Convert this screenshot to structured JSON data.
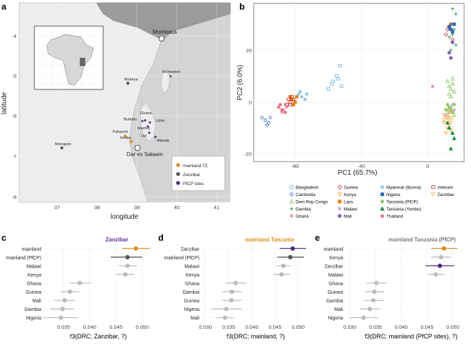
{
  "panel_a": {
    "letter": "a",
    "xlabel": "longitude",
    "ylabel": "latitude",
    "x_ticks": [
      "37",
      "38",
      "39",
      "40",
      "41"
    ],
    "y_ticks": [
      "-4",
      "-5",
      "-6",
      "-7",
      "-8"
    ],
    "places": {
      "mombasa": "Mombasa",
      "dar": "Dar es Salaam",
      "muheza": "Muheza",
      "morogoro": "Morogoro",
      "micheweni": "Micheweni",
      "ghana": "Ghana",
      "bububu": "Bububu",
      "uzini": "Uzini",
      "machui": "Machui",
      "uzi": "Uzi",
      "mtende": "Mtende",
      "fukayosi": "Fukayosi",
      "yombo": "Yombo"
    },
    "legend": [
      {
        "label": "mainland TZ",
        "color": "#e08a1e"
      },
      {
        "label": "Zanzibar",
        "color": "#555555"
      },
      {
        "label": "PfCP sites",
        "color": "#4b2a80"
      }
    ]
  },
  "panel_b": {
    "letter": "b",
    "chart_data": {
      "type": "scatter",
      "xlabel": "PC1 (65.7%)",
      "ylabel": "PC2 (6.0%)",
      "x_ticks": [
        "-80",
        "-40",
        "0"
      ],
      "y_ticks": [
        "20",
        "0",
        "-20"
      ],
      "xlim": [
        -105,
        22
      ],
      "ylim": [
        -23,
        38
      ],
      "groups": [
        {
          "name": "Bangladesh",
          "color": "#6aaee0",
          "marker": "square-open",
          "points": [
            [
              -60,
              5
            ],
            [
              -57,
              8
            ],
            [
              -55,
              10
            ],
            [
              -53,
              14
            ],
            [
              -52,
              6
            ],
            [
              -58,
              7
            ],
            [
              -54,
              9
            ]
          ]
        },
        {
          "name": "Cambodia",
          "color": "#1f5fb0",
          "marker": "circle-open",
          "points": [
            [
              -100,
              -6
            ],
            [
              -98,
              -7
            ],
            [
              -97,
              -9
            ],
            [
              -95,
              -6
            ],
            [
              -96,
              -8
            ]
          ]
        },
        {
          "name": "Dem Rep Congo",
          "color": "#7cc242",
          "marker": "triangle-open",
          "points": [
            [
              12,
              8
            ],
            [
              13,
              6
            ],
            [
              14,
              5
            ],
            [
              15,
              7
            ],
            [
              16,
              4
            ],
            [
              13,
              3
            ],
            [
              15,
              9
            ],
            [
              14,
              2
            ],
            [
              12,
              -4
            ],
            [
              13,
              -6
            ],
            [
              16,
              -5
            ]
          ]
        },
        {
          "name": "Gambia",
          "color": "#2aa04a",
          "marker": "plus",
          "points": [
            [
              15,
              36
            ],
            [
              17,
              34
            ],
            [
              14,
              30
            ],
            [
              16,
              28
            ],
            [
              13,
              25
            ],
            [
              15,
              26
            ],
            [
              17,
              22
            ],
            [
              14,
              20
            ]
          ]
        },
        {
          "name": "Ghana",
          "color": "#e05a70",
          "marker": "cross",
          "points": [
            [
              3,
              6
            ],
            [
              -85,
              -2
            ],
            [
              -88,
              -4
            ],
            [
              -86,
              -1
            ],
            [
              -87,
              -3
            ]
          ]
        },
        {
          "name": "Guinea",
          "color": "#c0202a",
          "marker": "diamond-open",
          "points": [
            [
              12,
              28
            ],
            [
              14,
              30
            ],
            [
              11,
              26
            ],
            [
              15,
              24
            ],
            [
              13,
              29
            ]
          ]
        },
        {
          "name": "Kenya",
          "color": "#f0a030",
          "marker": "triangle-down-open",
          "points": [
            [
              10,
              -8
            ],
            [
              12,
              -10
            ],
            [
              11,
              -12
            ],
            [
              13,
              -9
            ],
            [
              14,
              -11
            ],
            [
              10,
              -5
            ],
            [
              12,
              -6
            ],
            [
              15,
              -4
            ]
          ]
        },
        {
          "name": "Laos",
          "color": "#f07c00",
          "marker": "square",
          "points": [
            [
              -82,
              1
            ],
            [
              -80,
              0
            ],
            [
              -81,
              -1
            ],
            [
              -79,
              2
            ],
            [
              -83,
              2
            ]
          ]
        },
        {
          "name": "Malawi",
          "color": "#d9b0e0",
          "marker": "circle",
          "points": [
            [
              12,
              -3
            ],
            [
              14,
              -2
            ],
            [
              13,
              -4
            ],
            [
              15,
              -1
            ],
            [
              11,
              -5
            ],
            [
              16,
              -3
            ]
          ]
        },
        {
          "name": "Mali",
          "color": "#7b5ab8",
          "marker": "diamond",
          "points": [
            [
              15,
              23
            ],
            [
              13,
              19
            ],
            [
              14,
              17
            ]
          ]
        },
        {
          "name": "Myanmar (Burma)",
          "color": "#90c8e8",
          "marker": "circle",
          "points": [
            [
              -78,
              3
            ],
            [
              -76,
              2
            ],
            [
              -74,
              1
            ],
            [
              -77,
              4
            ],
            [
              -73,
              3
            ]
          ]
        },
        {
          "name": "Nigeria",
          "color": "#2a6ab8",
          "marker": "square",
          "points": [
            [
              14,
              28
            ],
            [
              16,
              30
            ],
            [
              15,
              27
            ],
            [
              13,
              29
            ]
          ]
        },
        {
          "name": "Tanzania (PfCP)",
          "color": "#8ad050",
          "marker": "circle",
          "points": [
            [
              12,
              -1
            ],
            [
              14,
              -3
            ],
            [
              13,
              -2
            ],
            [
              15,
              -4
            ],
            [
              11,
              -3
            ],
            [
              16,
              -1
            ]
          ]
        },
        {
          "name": "Tanzania (Yombo)",
          "color": "#1a8a3a",
          "marker": "triangle",
          "points": [
            [
              13,
              -10
            ],
            [
              15,
              -12
            ],
            [
              14,
              -18
            ],
            [
              16,
              -14
            ],
            [
              12,
              -8
            ]
          ]
        },
        {
          "name": "Thailand",
          "color": "#f07080",
          "marker": "circle",
          "points": [
            [
              -90,
              -2
            ],
            [
              -88,
              -3
            ],
            [
              -86,
              -4
            ],
            [
              -89,
              -1
            ]
          ]
        },
        {
          "name": "Vietnam",
          "color": "#c82020",
          "marker": "square-open",
          "points": [
            [
              -84,
              1
            ],
            [
              -83,
              0
            ],
            [
              -82,
              2
            ],
            [
              -85,
              -1
            ],
            [
              -81,
              1
            ],
            [
              -83,
              -1
            ]
          ]
        },
        {
          "name": "Zanzibar",
          "color": "#f0b850",
          "marker": "triangle-down-open",
          "points": [
            [
              11,
              -6
            ],
            [
              13,
              -7
            ],
            [
              12,
              -5
            ],
            [
              14,
              -8
            ],
            [
              15,
              -6
            ],
            [
              10,
              -7
            ],
            [
              13,
              -4
            ]
          ]
        }
      ]
    }
  },
  "panel_c": {
    "letter": "c",
    "chart_data": {
      "type": "scatter",
      "title": "Zanzibar",
      "title_color": "#5b2da0",
      "xlabel": "f3(DRC; Zanzibar, ?)",
      "x_ticks": [
        "0.035",
        "0.040",
        "0.045",
        "0.050"
      ],
      "xlim": [
        0.031,
        0.052
      ],
      "categories": [
        "mainland",
        "mainland (PfCP)",
        "Malawi",
        "Kenya",
        "Ghana",
        "Guinea",
        "Mali",
        "Gambia",
        "Nigeria"
      ],
      "values": [
        0.0488,
        0.0472,
        0.0472,
        0.0468,
        0.0381,
        0.0362,
        0.0352,
        0.0348,
        0.0345
      ],
      "lo": [
        0.0462,
        0.044,
        0.0455,
        0.045,
        0.0362,
        0.0345,
        0.0332,
        0.0325,
        0.031
      ],
      "hi": [
        0.0515,
        0.05,
        0.049,
        0.0485,
        0.0402,
        0.038,
        0.0372,
        0.037,
        0.0378
      ],
      "colors": [
        "#e08a1e",
        "#555555",
        "#bbbbbb",
        "#bbbbbb",
        "#bbbbbb",
        "#bbbbbb",
        "#bbbbbb",
        "#bbbbbb",
        "#bbbbbb"
      ]
    }
  },
  "panel_d": {
    "letter": "d",
    "chart_data": {
      "type": "scatter",
      "title": "mainland Tanzania",
      "title_color": "#e08a1e",
      "xlabel": "f3(DRC; mainland, ?)",
      "x_ticks": [
        "0.030",
        "0.035",
        "0.040",
        "0.045",
        "0.050"
      ],
      "xlim": [
        0.029,
        0.053
      ],
      "categories": [
        "Zanzibar",
        "mainland (PfCP)",
        "Malawi",
        "Kenya",
        "Ghana",
        "Gambia",
        "Guinea",
        "Nigeria",
        "Mali"
      ],
      "values": [
        0.0488,
        0.0483,
        0.0468,
        0.0464,
        0.0365,
        0.0357,
        0.0356,
        0.0345,
        0.0342
      ],
      "lo": [
        0.046,
        0.0455,
        0.0453,
        0.0447,
        0.0344,
        0.0337,
        0.0336,
        0.0312,
        0.0322
      ],
      "hi": [
        0.0517,
        0.0512,
        0.0483,
        0.0482,
        0.0387,
        0.0378,
        0.0377,
        0.0378,
        0.0363
      ],
      "colors": [
        "#4b2a80",
        "#555555",
        "#bbbbbb",
        "#bbbbbb",
        "#bbbbbb",
        "#bbbbbb",
        "#bbbbbb",
        "#bbbbbb",
        "#bbbbbb"
      ]
    }
  },
  "panel_e": {
    "letter": "e",
    "chart_data": {
      "type": "scatter",
      "title": "mainland Tanzania (PfCP)",
      "title_color": "#777777",
      "xlabel": "f3(DRC; mainland (PfCP sites), ?)",
      "x_ticks": [
        "0.030",
        "0.035",
        "0.040",
        "0.045",
        "0.050"
      ],
      "xlim": [
        0.029,
        0.053
      ],
      "categories": [
        "mainland",
        "Kenya",
        "Zanzibar",
        "Malawi",
        "Ghana",
        "Guinea",
        "Gambia",
        "Mali",
        "Nigeria"
      ],
      "values": [
        0.0483,
        0.0477,
        0.0475,
        0.0467,
        0.0352,
        0.0348,
        0.0346,
        0.0339,
        0.0327
      ],
      "lo": [
        0.0458,
        0.0458,
        0.0447,
        0.0452,
        0.0333,
        0.033,
        0.0328,
        0.032,
        0.03
      ],
      "hi": [
        0.0509,
        0.0497,
        0.0503,
        0.0484,
        0.0372,
        0.0367,
        0.0366,
        0.036,
        0.0355
      ],
      "colors": [
        "#e08a1e",
        "#bbbbbb",
        "#4b2a80",
        "#bbbbbb",
        "#bbbbbb",
        "#bbbbbb",
        "#bbbbbb",
        "#bbbbbb",
        "#bbbbbb"
      ]
    }
  }
}
